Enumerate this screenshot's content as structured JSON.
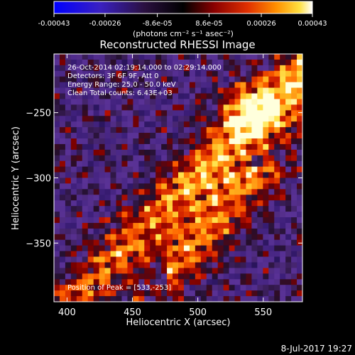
{
  "colorbar": {
    "ticks": [
      "-0.00043",
      "-0.00026",
      "-8.6e-05",
      "8.6e-05",
      "0.00026",
      "0.00043"
    ],
    "tick_values": [
      -0.00043,
      -0.00026,
      -8.6e-05,
      8.6e-05,
      0.00026,
      0.00043
    ],
    "range": [
      -0.00043,
      0.00043
    ],
    "unit_label": "(photons cm⁻² s⁻¹ asec⁻²)"
  },
  "annotations": {
    "time": "26-Oct-2014 02:19:14.000 to 02:29:14.000",
    "detectors": "Detectors: 3F 6F 9F, Att 0",
    "energy": "Energy Range: 25.0 - 50.0 keV",
    "method": "Clean     Total counts: 6.43E+03",
    "peak": "Position of Peak = [533,-253]"
  },
  "footer": {
    "timestamp": "8-Jul-2017 19:27"
  },
  "chart_data": {
    "type": "heatmap",
    "title": "Reconstructed RHESSI Image",
    "xlabel": "Heliocentric X (arcsec)",
    "ylabel": "Heliocentric Y (arcsec)",
    "xlim": [
      390,
      580
    ],
    "ylim": [
      -395,
      -205
    ],
    "x_ticks": [
      400,
      450,
      500,
      550
    ],
    "y_ticks": [
      -250,
      -300,
      -350
    ],
    "x_tick_labels": [
      "400",
      "450",
      "500",
      "550"
    ],
    "y_tick_labels": [
      "−250",
      "−300",
      "−350"
    ],
    "colormap": [
      "#0000ff",
      "#5a2d8c",
      "#2a1438",
      "#bb1000",
      "#ff7000",
      "#ffe040",
      "#ffffff"
    ],
    "peak_position": [
      533,
      -253
    ],
    "grid": false,
    "legend": "colorbar-top"
  }
}
